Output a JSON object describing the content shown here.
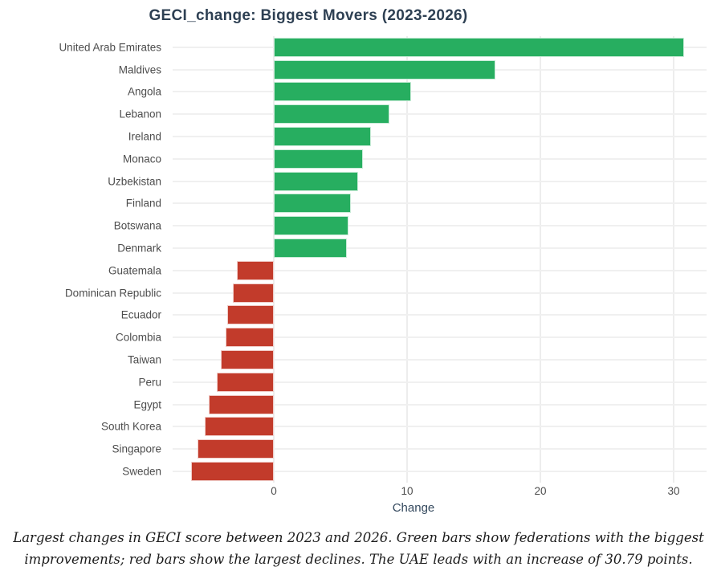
{
  "title": "GECI_change: Biggest Movers (2023-2026)",
  "caption": {
    "line1": "Largest changes in GECI score between 2023 and 2026. Green bars show federations with the biggest",
    "line2": "improvements; red bars show the largest declines. The UAE leads with an increase of 30.79 points."
  },
  "chart_data": {
    "type": "bar",
    "orientation": "horizontal",
    "title": "GECI_change: Biggest Movers (2023-2026)",
    "xlabel": "Change",
    "ylabel": "",
    "xticks": [
      0,
      10,
      20,
      30
    ],
    "xlim": [
      -7.6,
      32.5
    ],
    "grid": true,
    "legend": "none",
    "categories": [
      "United Arab Emirates",
      "Maldives",
      "Angola",
      "Lebanon",
      "Ireland",
      "Monaco",
      "Uzbekistan",
      "Finland",
      "Botswana",
      "Denmark",
      "Guatemala",
      "Dominican Republic",
      "Ecuador",
      "Colombia",
      "Taiwan",
      "Peru",
      "Egypt",
      "South Korea",
      "Singapore",
      "Sweden"
    ],
    "values": [
      30.79,
      16.6,
      10.3,
      8.7,
      7.3,
      6.7,
      6.3,
      5.8,
      5.6,
      5.5,
      -2.8,
      -3.1,
      -3.5,
      -3.6,
      -4.0,
      -4.3,
      -4.9,
      -5.2,
      -5.7,
      -6.2
    ],
    "colors": {
      "positive": "#27ae60",
      "negative": "#c23b2b",
      "title": "#2e4053",
      "axis_label": "#34495e",
      "tick_label": "#4d4d4d",
      "gridline": "#efefef"
    }
  }
}
